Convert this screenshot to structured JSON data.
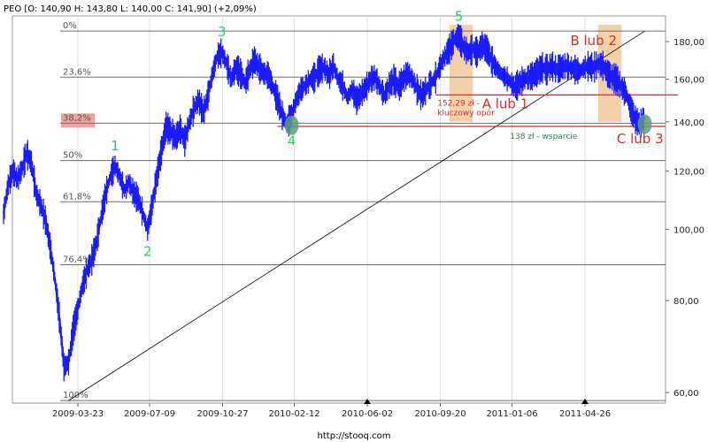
{
  "header": {
    "text": "PEO [O: 140,90  H: 143,80  L: 140,00  C: 141,90] (+2,09%)"
  },
  "footer": {
    "source": "http://stooq.com"
  },
  "chart_data": {
    "type": "line",
    "ticker": "PEO",
    "x_ticks": [
      "2009-03-23",
      "2009-07-09",
      "2009-10-27",
      "2010-02-12",
      "2010-06-02",
      "2010-09-20",
      "2011-01-06",
      "2011-04-26"
    ],
    "y_ticks": [
      60,
      80,
      100,
      120,
      140,
      160,
      180
    ],
    "y_scale": "log",
    "ylim": [
      58,
      193
    ],
    "price_series": {
      "color": "#1a1aff",
      "points": [
        [
          "2008-12-01",
          105
        ],
        [
          "2008-12-08",
          115
        ],
        [
          "2008-12-15",
          120
        ],
        [
          "2008-12-22",
          117
        ],
        [
          "2008-12-29",
          121
        ],
        [
          "2009-01-05",
          127
        ],
        [
          "2009-01-12",
          123
        ],
        [
          "2009-01-19",
          112
        ],
        [
          "2009-01-26",
          108
        ],
        [
          "2009-02-02",
          103
        ],
        [
          "2009-02-09",
          95
        ],
        [
          "2009-02-16",
          86
        ],
        [
          "2009-02-23",
          76
        ],
        [
          "2009-03-02",
          65
        ],
        [
          "2009-03-09",
          66
        ],
        [
          "2009-03-16",
          73
        ],
        [
          "2009-03-23",
          78
        ],
        [
          "2009-03-30",
          84
        ],
        [
          "2009-04-06",
          88
        ],
        [
          "2009-04-13",
          91
        ],
        [
          "2009-04-20",
          96
        ],
        [
          "2009-04-27",
          104
        ],
        [
          "2009-05-04",
          112
        ],
        [
          "2009-05-11",
          118
        ],
        [
          "2009-05-18",
          122
        ],
        [
          "2009-05-25",
          118
        ],
        [
          "2009-06-01",
          113
        ],
        [
          "2009-06-08",
          116
        ],
        [
          "2009-06-15",
          112
        ],
        [
          "2009-06-22",
          110
        ],
        [
          "2009-06-29",
          105
        ],
        [
          "2009-07-06",
          100
        ],
        [
          "2009-07-13",
          108
        ],
        [
          "2009-07-20",
          118
        ],
        [
          "2009-07-27",
          128
        ],
        [
          "2009-08-03",
          138
        ],
        [
          "2009-08-10",
          136
        ],
        [
          "2009-08-17",
          133
        ],
        [
          "2009-08-24",
          137
        ],
        [
          "2009-08-31",
          132
        ],
        [
          "2009-09-07",
          140
        ],
        [
          "2009-09-14",
          146
        ],
        [
          "2009-09-21",
          150
        ],
        [
          "2009-09-28",
          144
        ],
        [
          "2009-10-05",
          152
        ],
        [
          "2009-10-12",
          163
        ],
        [
          "2009-10-19",
          172
        ],
        [
          "2009-10-26",
          174
        ],
        [
          "2009-11-02",
          168
        ],
        [
          "2009-11-09",
          160
        ],
        [
          "2009-11-16",
          166
        ],
        [
          "2009-11-23",
          163
        ],
        [
          "2009-11-30",
          158
        ],
        [
          "2009-12-07",
          165
        ],
        [
          "2009-12-14",
          170
        ],
        [
          "2009-12-21",
          166
        ],
        [
          "2009-12-28",
          163
        ],
        [
          "2010-01-04",
          162
        ],
        [
          "2010-01-11",
          156
        ],
        [
          "2010-01-18",
          150
        ],
        [
          "2010-01-25",
          143
        ],
        [
          "2010-02-01",
          139
        ],
        [
          "2010-02-08",
          143
        ],
        [
          "2010-02-15",
          150
        ],
        [
          "2010-02-22",
          155
        ],
        [
          "2010-03-01",
          157
        ],
        [
          "2010-03-08",
          160
        ],
        [
          "2010-03-15",
          161
        ],
        [
          "2010-03-22",
          165
        ],
        [
          "2010-03-29",
          166
        ],
        [
          "2010-04-05",
          162
        ],
        [
          "2010-04-12",
          167
        ],
        [
          "2010-04-19",
          160
        ],
        [
          "2010-04-26",
          157
        ],
        [
          "2010-05-03",
          151
        ],
        [
          "2010-05-10",
          155
        ],
        [
          "2010-05-17",
          150
        ],
        [
          "2010-05-24",
          153
        ],
        [
          "2010-05-31",
          156
        ],
        [
          "2010-06-07",
          160
        ],
        [
          "2010-06-14",
          161
        ],
        [
          "2010-06-21",
          156
        ],
        [
          "2010-06-28",
          152
        ],
        [
          "2010-07-05",
          157
        ],
        [
          "2010-07-12",
          160
        ],
        [
          "2010-07-19",
          156
        ],
        [
          "2010-07-26",
          160
        ],
        [
          "2010-08-02",
          163
        ],
        [
          "2010-08-09",
          160
        ],
        [
          "2010-08-16",
          155
        ],
        [
          "2010-08-23",
          152
        ],
        [
          "2010-08-30",
          155
        ],
        [
          "2010-09-06",
          158
        ],
        [
          "2010-09-13",
          161
        ],
        [
          "2010-09-20",
          167
        ],
        [
          "2010-09-27",
          172
        ],
        [
          "2010-10-04",
          176
        ],
        [
          "2010-10-11",
          181
        ],
        [
          "2010-10-18",
          183
        ],
        [
          "2010-10-25",
          177
        ],
        [
          "2010-11-01",
          174
        ],
        [
          "2010-11-08",
          176
        ],
        [
          "2010-11-15",
          174
        ],
        [
          "2010-11-22",
          178
        ],
        [
          "2010-11-29",
          176
        ],
        [
          "2010-12-06",
          170
        ],
        [
          "2010-12-13",
          166
        ],
        [
          "2010-12-20",
          163
        ],
        [
          "2010-12-27",
          161
        ],
        [
          "2011-01-03",
          159
        ],
        [
          "2011-01-10",
          156
        ],
        [
          "2011-01-17",
          158
        ],
        [
          "2011-01-24",
          160
        ],
        [
          "2011-01-31",
          161
        ],
        [
          "2011-02-07",
          162
        ],
        [
          "2011-02-14",
          164
        ],
        [
          "2011-02-21",
          166
        ],
        [
          "2011-02-28",
          165
        ],
        [
          "2011-03-07",
          167
        ],
        [
          "2011-03-14",
          165
        ],
        [
          "2011-03-21",
          166
        ],
        [
          "2011-03-28",
          167
        ],
        [
          "2011-04-04",
          166
        ],
        [
          "2011-04-11",
          165
        ],
        [
          "2011-04-18",
          164
        ],
        [
          "2011-04-25",
          166
        ],
        [
          "2011-05-02",
          167
        ],
        [
          "2011-05-09",
          166
        ],
        [
          "2011-05-16",
          168
        ],
        [
          "2011-05-23",
          167
        ],
        [
          "2011-05-30",
          163
        ],
        [
          "2011-06-06",
          161
        ],
        [
          "2011-06-13",
          160
        ],
        [
          "2011-06-20",
          156
        ],
        [
          "2011-06-27",
          153
        ],
        [
          "2011-07-04",
          146
        ],
        [
          "2011-07-11",
          141
        ],
        [
          "2011-07-18",
          139
        ],
        [
          "2011-07-25",
          141.9
        ]
      ]
    },
    "fibonacci_levels": [
      {
        "label": "0%",
        "price": 186
      },
      {
        "label": "23,6%",
        "price": 161
      },
      {
        "label": "38,2%",
        "price": 139.4,
        "highlight": true
      },
      {
        "label": "50%",
        "price": 124
      },
      {
        "label": "61,8%",
        "price": 109
      },
      {
        "label": "76,4%",
        "price": 89.5
      },
      {
        "label": "100%",
        "price": 58.5
      }
    ],
    "trendline": {
      "from": [
        "2009-03-09",
        58.5
      ],
      "to": [
        "2011-07-25",
        186
      ],
      "color": "#000000"
    },
    "resistance_line": {
      "price": 152.29,
      "from": "2010-09-13",
      "color": "#d32f2f",
      "label_lines": [
        "152,29 zł -",
        "kluczowy opór"
      ]
    },
    "support_line": {
      "price": 138,
      "from": "2010-01-18",
      "color": "#d32f2f",
      "label": "138 zł - wsparcie"
    },
    "highlight_zones": [
      {
        "from": "2010-10-04",
        "to": "2010-11-08",
        "color": "#f0c89a"
      },
      {
        "from": "2011-05-16",
        "to": "2011-06-20",
        "color": "#f0c89a"
      }
    ],
    "wave_labels": [
      {
        "text": "1",
        "date": "2009-05-18",
        "price": 128,
        "color": "#2ecc71"
      },
      {
        "text": "2",
        "date": "2009-07-06",
        "price": 92,
        "color": "#2ecc71"
      },
      {
        "text": "3",
        "date": "2009-10-26",
        "price": 183,
        "color": "#2ecc71"
      },
      {
        "text": "4",
        "date": "2010-02-08",
        "price": 130,
        "color": "#2ecc71"
      },
      {
        "text": "5",
        "date": "2010-10-18",
        "price": 192,
        "color": "#2ecc71"
      },
      {
        "text": "A lub 1",
        "date": "2010-12-27",
        "price": 146,
        "color": "#d32f2f"
      },
      {
        "text": "B lub 2",
        "date": "2011-05-09",
        "price": 178,
        "color": "#d32f2f"
      },
      {
        "text": "C lub 3",
        "date": "2011-07-18",
        "price": 131,
        "color": "#d32f2f"
      }
    ],
    "circles": [
      {
        "date": "2010-02-08",
        "price": 138.5,
        "color": "#5b9e7a"
      },
      {
        "date": "2011-07-25",
        "price": 139,
        "color": "#5b9e7a"
      }
    ],
    "x_markers": [
      "2010-06-02",
      "2011-04-26"
    ]
  }
}
